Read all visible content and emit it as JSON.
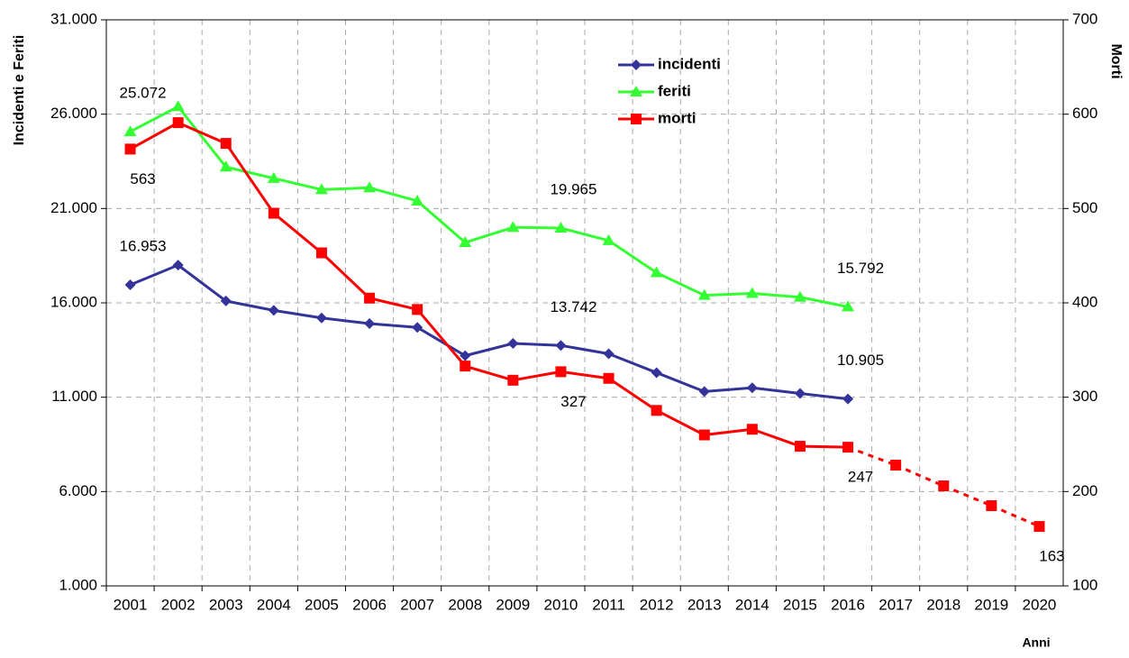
{
  "chart_data": {
    "type": "line",
    "y_label": "Incidenti e Feriti",
    "y2_label": "Morti",
    "x_label": "Anni",
    "categories": [
      "2001",
      "2002",
      "2003",
      "2004",
      "2005",
      "2006",
      "2007",
      "2008",
      "2009",
      "2010",
      "2011",
      "2012",
      "2013",
      "2014",
      "2015",
      "2016",
      "2017",
      "2018",
      "2019",
      "2020"
    ],
    "series": [
      {
        "name": "incidenti",
        "color": "#333399",
        "marker": "diamond",
        "axis": "y",
        "values": [
          16953,
          18000,
          16100,
          15600,
          15200,
          14900,
          14700,
          13200,
          13850,
          13742,
          13300,
          12300,
          11300,
          11500,
          11200,
          10905,
          null,
          null,
          null,
          null
        ],
        "value_labels": [
          "16.953",
          null,
          null,
          null,
          null,
          null,
          null,
          null,
          null,
          "13.742",
          null,
          null,
          null,
          null,
          null,
          "10.905",
          null,
          null,
          null,
          null
        ]
      },
      {
        "name": "feriti",
        "color": "#33ff33",
        "marker": "triangle",
        "axis": "y",
        "values": [
          25072,
          26400,
          23200,
          22600,
          22000,
          22100,
          21400,
          19200,
          20000,
          19965,
          19300,
          17600,
          16400,
          16500,
          16300,
          15792,
          null,
          null,
          null,
          null
        ],
        "value_labels": [
          "25.072",
          null,
          null,
          null,
          null,
          null,
          null,
          null,
          null,
          "19.965",
          null,
          null,
          null,
          null,
          null,
          "15.792",
          null,
          null,
          null,
          null
        ]
      },
      {
        "name": "morti",
        "color": "#ff0000",
        "marker": "square",
        "axis": "y2",
        "values": [
          563,
          591,
          569,
          495,
          453,
          405,
          393,
          333,
          318,
          327,
          320,
          286,
          260,
          266,
          248,
          247,
          228,
          206,
          185,
          163
        ],
        "value_labels": [
          "563",
          null,
          null,
          null,
          null,
          null,
          null,
          null,
          null,
          "327",
          null,
          null,
          null,
          null,
          null,
          "247",
          null,
          null,
          null,
          "163"
        ]
      }
    ],
    "ylim": [
      1000,
      31000
    ],
    "yticks": [
      {
        "value": 1000,
        "label": "1.000"
      },
      {
        "value": 6000,
        "label": "6.000"
      },
      {
        "value": 11000,
        "label": "11.000"
      },
      {
        "value": 16000,
        "label": "16.000"
      },
      {
        "value": 21000,
        "label": "21.000"
      },
      {
        "value": 26000,
        "label": "26.000"
      },
      {
        "value": 31000,
        "label": "31.000"
      }
    ],
    "y2lim": [
      100,
      700
    ],
    "y2ticks": [
      100,
      200,
      300,
      400,
      500,
      600,
      700
    ],
    "grid": true
  }
}
